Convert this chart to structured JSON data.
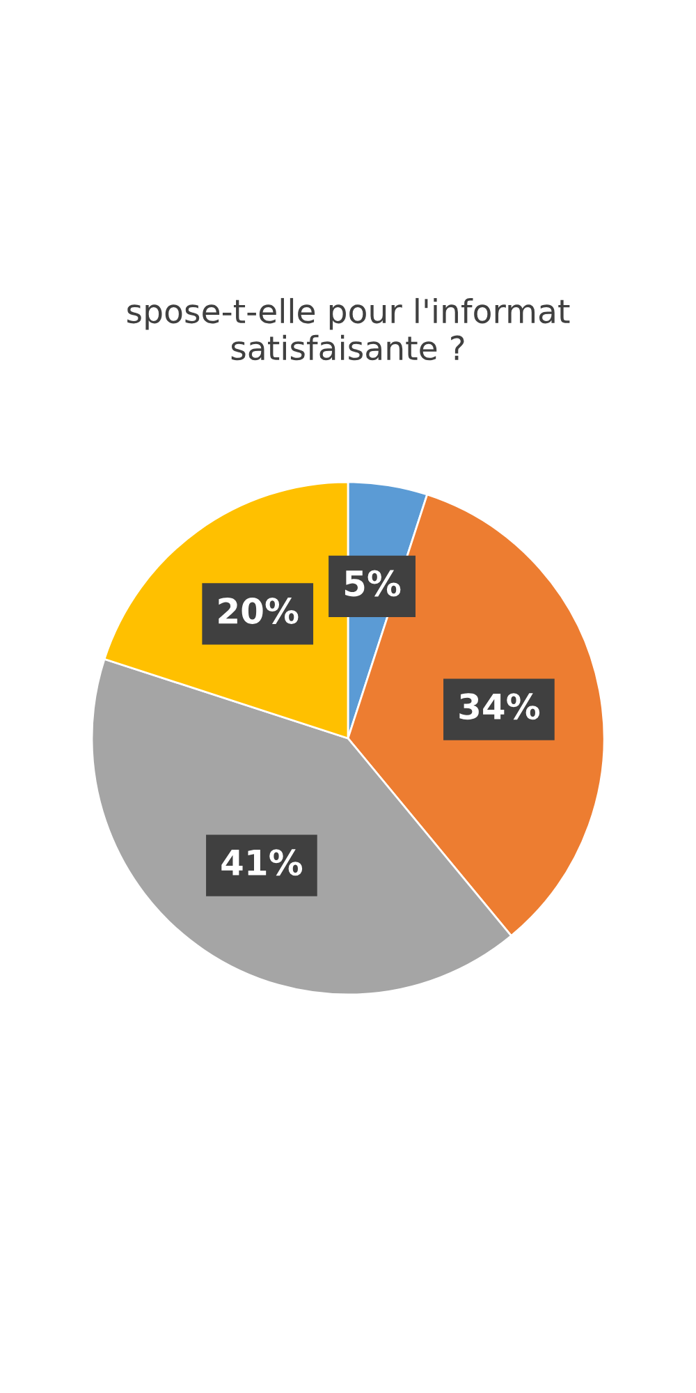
{
  "chart_data": {
    "type": "pie",
    "title": "spose-t-elle pour l'informat\nsatisfaisante ?",
    "categories": [
      null,
      null,
      null,
      null
    ],
    "values": [
      5,
      34,
      41,
      20
    ],
    "colors": [
      "#5b9bd5",
      "#ed7d31",
      "#a5a5a5",
      "#ffc000"
    ],
    "value_labels": [
      "5%",
      "34%",
      "41%",
      "20%"
    ]
  }
}
